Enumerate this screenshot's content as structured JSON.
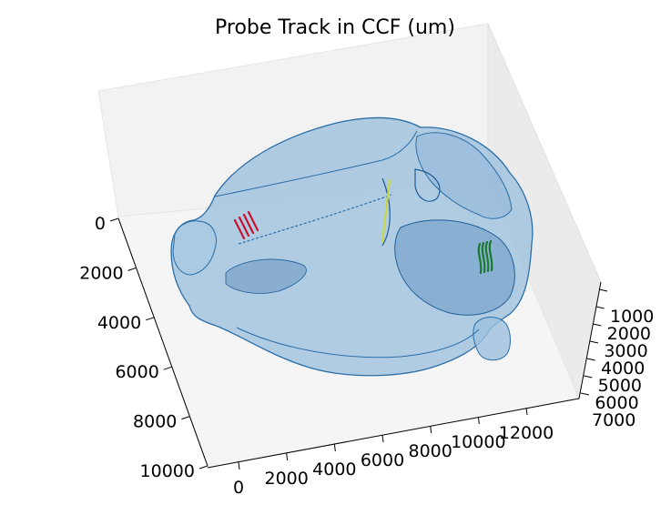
{
  "chart_data": {
    "type": "3d-surface-with-lines",
    "title": "Probe Track in CCF (um)",
    "axes": {
      "x": {
        "ticks": [
          "0",
          "2000",
          "4000",
          "6000",
          "8000",
          "10000",
          "12000"
        ]
      },
      "y": {
        "ticks": [
          "0",
          "2000",
          "4000",
          "6000",
          "8000",
          "10000"
        ]
      },
      "z": {
        "ticks": [
          "1000",
          "2000",
          "3000",
          "4000",
          "5000",
          "6000",
          "7000"
        ]
      }
    },
    "brain_surface_color": "#9cc0de",
    "brain_edge_color": "#1f5f96",
    "series": [
      {
        "color": "#c8102e",
        "lines": 4
      },
      {
        "color": "#c8d84a",
        "lines": 1
      },
      {
        "color": "#1a7a2a",
        "lines": 4
      }
    ]
  }
}
